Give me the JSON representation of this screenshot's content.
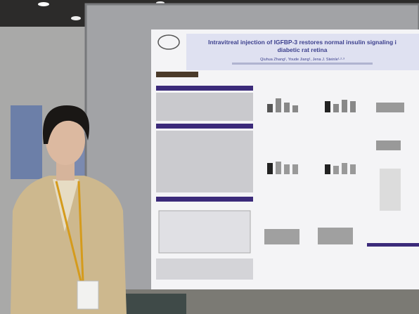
{
  "poster": {
    "title_lines": [
      "Intravitreal injection of IGFBP-3 restores normal insulin signaling i",
      "diabetic rat retina"
    ],
    "authors": "Qiuhua Zhang¹, Youde Jiang¹, Jena J. Steinle¹·²·³"
  }
}
